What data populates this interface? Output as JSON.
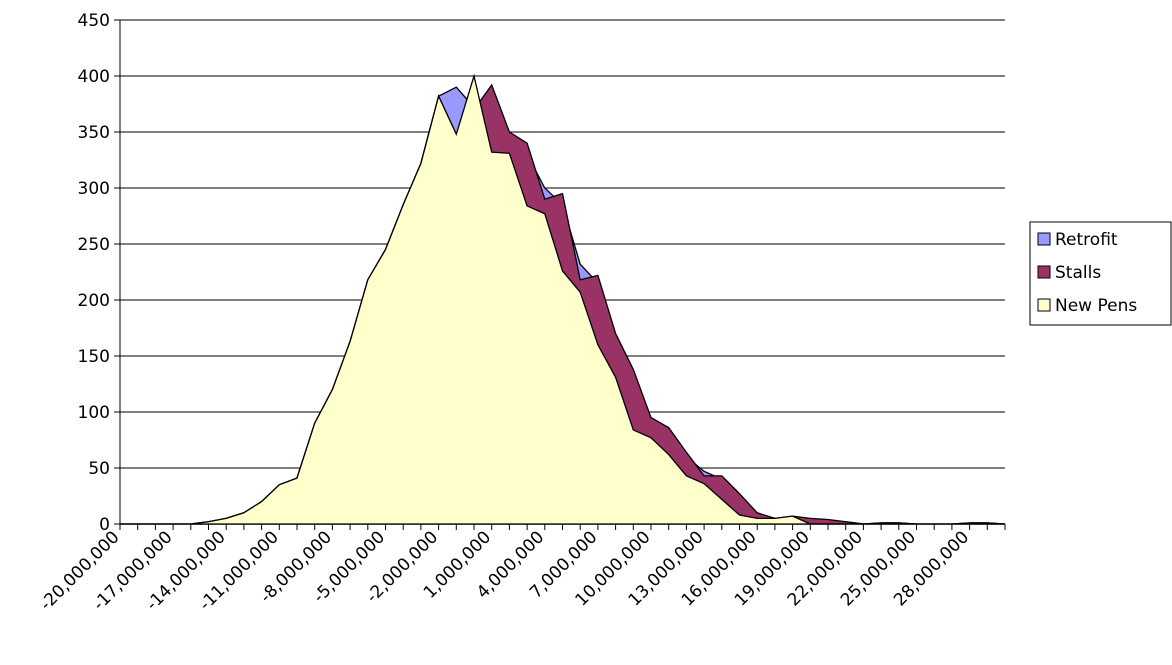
{
  "chart_data": {
    "type": "area",
    "categories": [
      "-20,000,000",
      null,
      null,
      "-17,000,000",
      null,
      null,
      "-14,000,000",
      null,
      null,
      "-11,000,000",
      null,
      null,
      "-8,000,000",
      null,
      null,
      "-5,000,000",
      null,
      null,
      "-2,000,000",
      null,
      null,
      "1,000,000",
      null,
      null,
      "4,000,000",
      null,
      null,
      "7,000,000",
      null,
      null,
      "10,000,000",
      null,
      null,
      "13,000,000",
      null,
      null,
      "16,000,000",
      null,
      null,
      "19,000,000",
      null,
      null,
      "22,000,000",
      null,
      null,
      "25,000,000",
      null,
      null,
      "28,000,000",
      null,
      null
    ],
    "series": [
      {
        "name": "Retrofit",
        "color": "#9999ff",
        "values": [
          0,
          0,
          0,
          0,
          0,
          2,
          5,
          10,
          20,
          35,
          41,
          90,
          120,
          163,
          218,
          245,
          285,
          322,
          382,
          390,
          372,
          385,
          345,
          330,
          300,
          285,
          232,
          215,
          165,
          135,
          90,
          82,
          60,
          47,
          40,
          25,
          9,
          5,
          6,
          4,
          3,
          2,
          0,
          1,
          1,
          0,
          0,
          0,
          1,
          1,
          0
        ]
      },
      {
        "name": "Stalls",
        "color": "#993366",
        "values": [
          0,
          0,
          0,
          0,
          0,
          2,
          5,
          10,
          20,
          35,
          41,
          90,
          120,
          163,
          218,
          245,
          285,
          322,
          382,
          348,
          370,
          392,
          350,
          340,
          290,
          295,
          218,
          222,
          170,
          138,
          95,
          86,
          64,
          43,
          43,
          27,
          10,
          5,
          7,
          5,
          4,
          2,
          0,
          1,
          1,
          0,
          0,
          0,
          1,
          1,
          0
        ]
      },
      {
        "name": "New Pens",
        "color": "#ffffcc",
        "values": [
          0,
          0,
          0,
          0,
          0,
          2,
          5,
          10,
          20,
          35,
          41,
          90,
          120,
          163,
          218,
          245,
          285,
          322,
          382,
          348,
          400,
          332,
          331,
          284,
          277,
          226,
          207,
          160,
          131,
          84,
          77,
          62,
          43,
          36,
          22,
          8,
          5,
          5,
          7,
          0,
          0,
          0,
          0,
          0,
          0,
          0,
          0,
          0,
          0,
          0,
          0
        ]
      }
    ],
    "ylim": [
      0,
      450
    ],
    "yticks": [
      0,
      50,
      100,
      150,
      200,
      250,
      300,
      350,
      400,
      450
    ],
    "grid": true,
    "legend": "right"
  }
}
